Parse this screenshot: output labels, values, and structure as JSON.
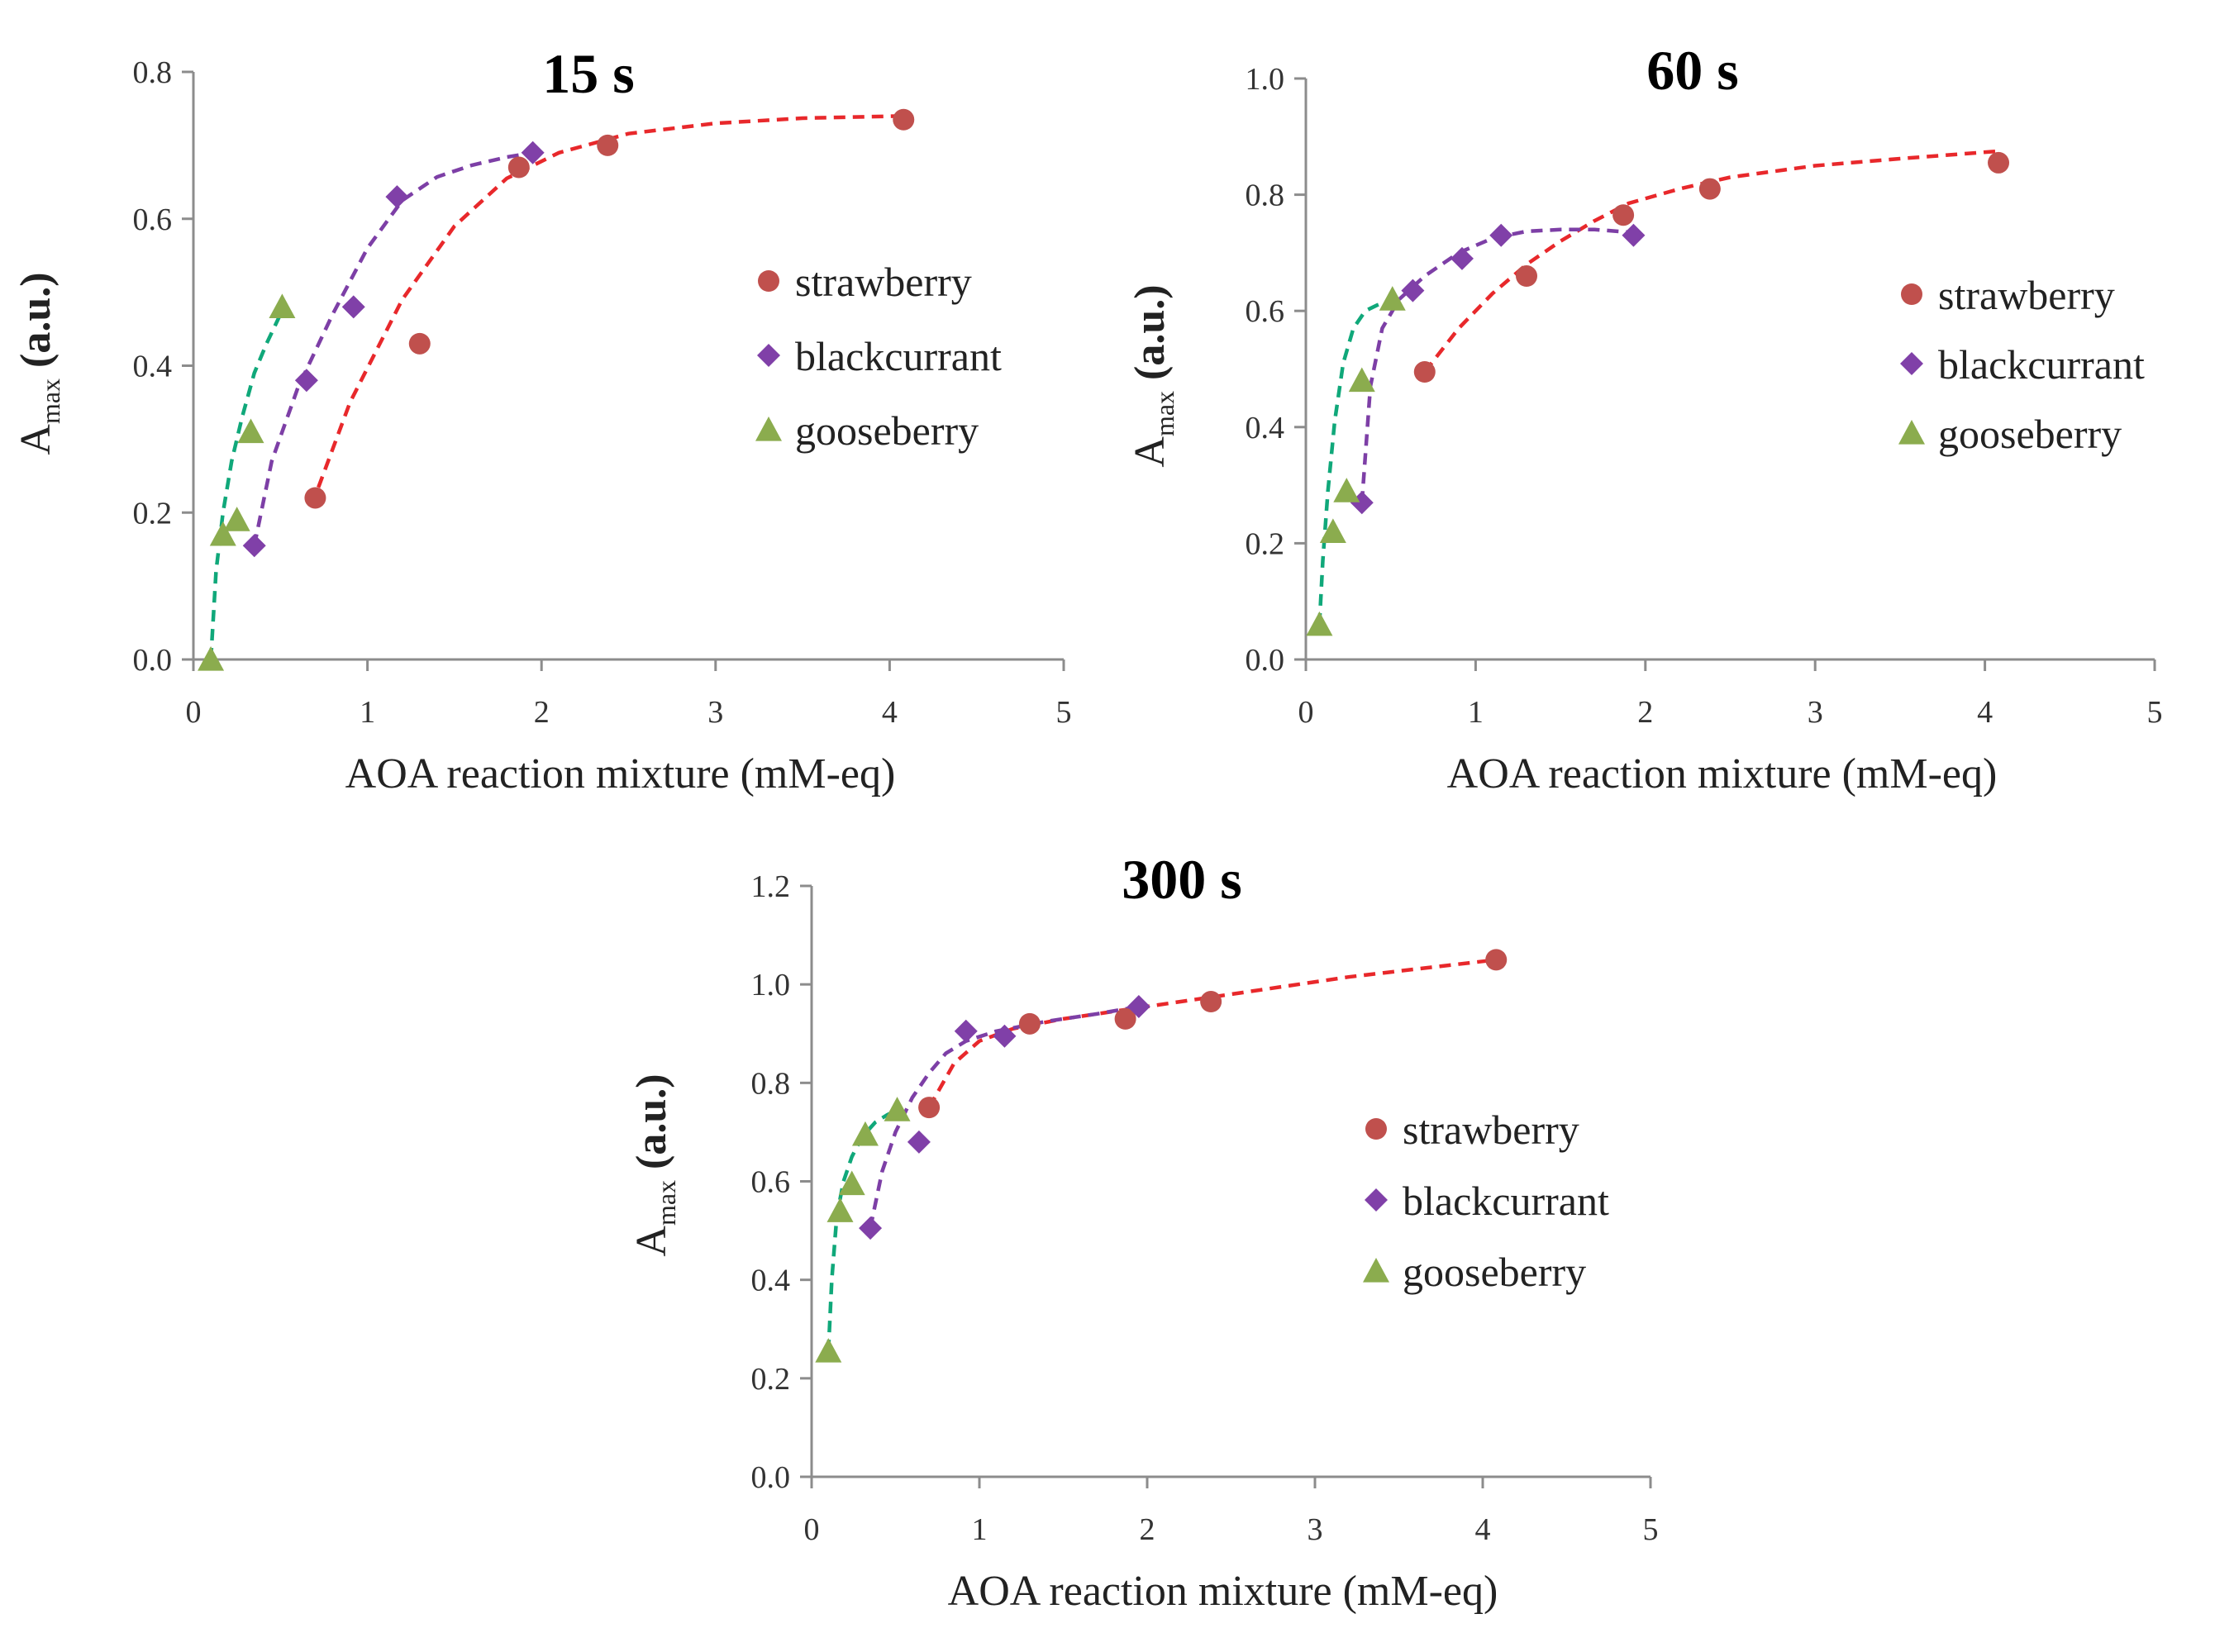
{
  "colors": {
    "strawberry": "#c0504d",
    "strawberry_line": "#e8282b",
    "blackcurrant": "#8040a8",
    "blackcurrant_line": "#7d3fa6",
    "gooseberry": "#8bac4e",
    "gooseberry_line": "#10a87a"
  },
  "chart_data": [
    {
      "type": "scatter",
      "title": "15 s",
      "xlabel": "AOA reaction mixture (mM-eq)",
      "ylabel_main": "A",
      "ylabel_sub": "max",
      "ylabel_unit": " (a.u.)",
      "xlim": [
        0,
        5
      ],
      "ylim": [
        0,
        0.8
      ],
      "xticks": [
        0,
        1,
        2,
        3,
        4,
        5
      ],
      "yticks": [
        0,
        0.2,
        0.4,
        0.6,
        0.8
      ],
      "ytick_decimals": 1,
      "legend": [
        "strawberry",
        "blackcurrant",
        "gooseberry"
      ],
      "series": [
        {
          "name": "strawberry",
          "marker": "circle",
          "x": [
            0.7,
            1.3,
            1.87,
            2.38,
            4.08
          ],
          "y": [
            0.22,
            0.43,
            0.67,
            0.7,
            0.735
          ],
          "trend_x": [
            0.68,
            0.9,
            1.2,
            1.5,
            1.8,
            2.1,
            2.5,
            3.0,
            3.5,
            4.08
          ],
          "trend_y": [
            0.21,
            0.35,
            0.49,
            0.59,
            0.655,
            0.69,
            0.716,
            0.73,
            0.737,
            0.74
          ]
        },
        {
          "name": "blackcurrant",
          "marker": "diamond",
          "x": [
            0.35,
            0.65,
            0.92,
            1.17,
            1.95
          ],
          "y": [
            0.155,
            0.38,
            0.48,
            0.63,
            0.69
          ],
          "trend_x": [
            0.35,
            0.45,
            0.6,
            0.8,
            1.0,
            1.2,
            1.4,
            1.6,
            1.8,
            1.95
          ],
          "trend_y": [
            0.155,
            0.27,
            0.37,
            0.47,
            0.56,
            0.625,
            0.657,
            0.673,
            0.684,
            0.69
          ]
        },
        {
          "name": "gooseberry",
          "marker": "triangle",
          "x": [
            0.1,
            0.17,
            0.25,
            0.33,
            0.51
          ],
          "y": [
            0.0,
            0.17,
            0.19,
            0.31,
            0.48
          ],
          "trend_x": [
            0.1,
            0.13,
            0.17,
            0.22,
            0.28,
            0.35,
            0.42,
            0.51
          ],
          "trend_y": [
            0.0,
            0.12,
            0.2,
            0.27,
            0.33,
            0.39,
            0.43,
            0.475
          ]
        }
      ]
    },
    {
      "type": "scatter",
      "title": "60 s",
      "xlabel": "AOA reaction mixture (mM-eq)",
      "ylabel_main": "A",
      "ylabel_sub": "max",
      "ylabel_unit": " (a.u.)",
      "xlim": [
        0,
        5
      ],
      "ylim": [
        0,
        1.0
      ],
      "xticks": [
        0,
        1,
        2,
        3,
        4,
        5
      ],
      "yticks": [
        0,
        0.2,
        0.4,
        0.6,
        0.8,
        1.0
      ],
      "ytick_decimals": 1,
      "legend": [
        "strawberry",
        "blackcurrant",
        "gooseberry"
      ],
      "series": [
        {
          "name": "strawberry",
          "marker": "circle",
          "x": [
            0.7,
            1.3,
            1.87,
            2.38,
            4.08
          ],
          "y": [
            0.495,
            0.66,
            0.765,
            0.81,
            0.855
          ],
          "trend_x": [
            0.7,
            0.9,
            1.1,
            1.3,
            1.5,
            1.7,
            1.9,
            2.2,
            2.5,
            3.0,
            3.5,
            4.08
          ],
          "trend_y": [
            0.495,
            0.57,
            0.63,
            0.68,
            0.72,
            0.755,
            0.785,
            0.81,
            0.83,
            0.85,
            0.862,
            0.875
          ]
        },
        {
          "name": "blackcurrant",
          "marker": "diamond",
          "x": [
            0.33,
            0.63,
            0.92,
            1.15,
            1.93
          ],
          "y": [
            0.27,
            0.635,
            0.69,
            0.73,
            0.73
          ],
          "trend_x": [
            0.33,
            0.38,
            0.45,
            0.55,
            0.7,
            0.9,
            1.1,
            1.3,
            1.5,
            1.7,
            1.93
          ],
          "trend_y": [
            0.27,
            0.47,
            0.57,
            0.62,
            0.66,
            0.7,
            0.725,
            0.737,
            0.74,
            0.74,
            0.735
          ]
        },
        {
          "name": "gooseberry",
          "marker": "triangle",
          "x": [
            0.08,
            0.16,
            0.24,
            0.33,
            0.51
          ],
          "y": [
            0.06,
            0.22,
            0.29,
            0.48,
            0.62
          ],
          "trend_x": [
            0.08,
            0.1,
            0.13,
            0.17,
            0.22,
            0.28,
            0.35,
            0.42,
            0.51
          ],
          "trend_y": [
            0.06,
            0.17,
            0.29,
            0.41,
            0.51,
            0.57,
            0.6,
            0.61,
            0.62
          ]
        }
      ]
    },
    {
      "type": "scatter",
      "title": "300 s",
      "xlabel": "AOA reaction mixture (mM-eq)",
      "ylabel_main": "A",
      "ylabel_sub": "max",
      "ylabel_unit": " (a.u.)",
      "xlim": [
        0,
        5
      ],
      "ylim": [
        0,
        1.2
      ],
      "xticks": [
        0,
        1,
        2,
        3,
        4,
        5
      ],
      "yticks": [
        0,
        0.2,
        0.4,
        0.6,
        0.8,
        1.0,
        1.2
      ],
      "ytick_decimals": 1,
      "legend": [
        "strawberry",
        "blackcurrant",
        "gooseberry"
      ],
      "series": [
        {
          "name": "strawberry",
          "marker": "circle",
          "x": [
            0.7,
            1.3,
            1.87,
            2.38,
            4.08
          ],
          "y": [
            0.75,
            0.92,
            0.93,
            0.965,
            1.05
          ],
          "trend_x": [
            0.7,
            0.85,
            1.0,
            1.2,
            1.5,
            1.8,
            2.2,
            2.7,
            3.2,
            3.7,
            4.08
          ],
          "trend_y": [
            0.75,
            0.84,
            0.885,
            0.91,
            0.93,
            0.945,
            0.965,
            0.99,
            1.015,
            1.035,
            1.05
          ]
        },
        {
          "name": "blackcurrant",
          "marker": "diamond",
          "x": [
            0.35,
            0.64,
            0.92,
            1.15,
            1.95
          ],
          "y": [
            0.505,
            0.68,
            0.905,
            0.895,
            0.955
          ],
          "trend_x": [
            0.35,
            0.42,
            0.5,
            0.6,
            0.7,
            0.8,
            0.92,
            1.1,
            1.4,
            1.7,
            1.95
          ],
          "trend_y": [
            0.505,
            0.62,
            0.7,
            0.77,
            0.82,
            0.86,
            0.885,
            0.905,
            0.925,
            0.94,
            0.955
          ]
        },
        {
          "name": "gooseberry",
          "marker": "triangle",
          "x": [
            0.1,
            0.17,
            0.24,
            0.32,
            0.51
          ],
          "y": [
            0.255,
            0.54,
            0.595,
            0.695,
            0.745
          ],
          "trend_x": [
            0.1,
            0.12,
            0.15,
            0.19,
            0.24,
            0.3,
            0.38,
            0.45,
            0.51
          ],
          "trend_y": [
            0.255,
            0.4,
            0.53,
            0.6,
            0.65,
            0.69,
            0.72,
            0.735,
            0.745
          ]
        }
      ]
    }
  ]
}
